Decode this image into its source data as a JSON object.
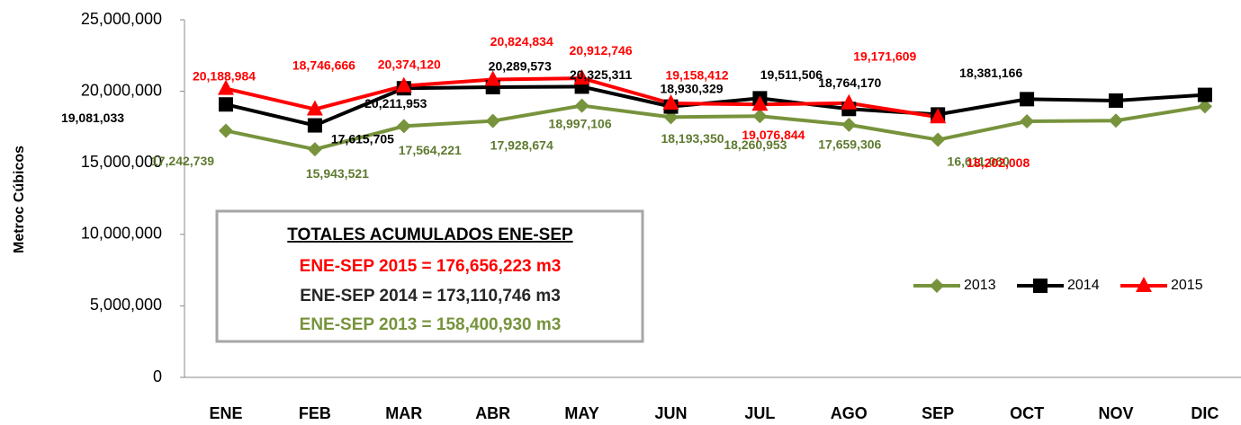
{
  "chart_data": {
    "type": "line",
    "ylabel": "Metroc Cúbicos",
    "categories": [
      "ENE",
      "FEB",
      "MAR",
      "ABR",
      "MAY",
      "JUN",
      "JUL",
      "AGO",
      "SEP",
      "OCT",
      "NOV",
      "DIC"
    ],
    "series": [
      {
        "name": "2013",
        "color": "#77933c",
        "marker": "diamond",
        "values": [
          17242739,
          15943521,
          17564221,
          17928674,
          18997106,
          18193350,
          18260953,
          17659306,
          16611060,
          17900000,
          17950000,
          18950000
        ],
        "value_labels": [
          "17,242,739",
          "15,943,521",
          "17,564,221",
          "17,928,674",
          "18,997,106",
          "18,193,350",
          "18,260,953",
          "17,659,306",
          "16,611,060",
          null,
          null,
          null
        ]
      },
      {
        "name": "2014",
        "color": "#000000",
        "marker": "square",
        "values": [
          19081033,
          17615705,
          20211953,
          20289573,
          20325311,
          18930329,
          19511506,
          18764170,
          18381166,
          19450000,
          19350000,
          19750000
        ],
        "value_labels": [
          "19,081,033",
          "17,615,705",
          "20,211,953",
          "20,289,573",
          "20,325,311",
          "18,930,329",
          "19,511,506",
          "18,764,170",
          "18,381,166",
          null,
          null,
          null
        ]
      },
      {
        "name": "2015",
        "color": "#ff0000",
        "marker": "triangle",
        "values": [
          20188984,
          18746666,
          20374120,
          20824834,
          20912746,
          19158412,
          19076844,
          19171609,
          18202008,
          null,
          null,
          null
        ],
        "value_labels": [
          "20,188,984",
          "18,746,666",
          "20,374,120",
          "20,824,834",
          "20,912,746",
          "19,158,412",
          "19,076,844",
          "19,171,609",
          "18,202,008",
          null,
          null,
          null
        ]
      }
    ],
    "ylim": [
      0,
      25000000
    ],
    "yticks": [
      0,
      {
        "value": 5000000,
        "label": "5,000,000"
      },
      {
        "value": 10000000,
        "label": "10,000,000"
      },
      {
        "value": 15000000,
        "label": "15,000,000"
      },
      {
        "value": 20000000,
        "label": "20,000,000"
      },
      {
        "value": 25000000,
        "label": "25,000,000"
      }
    ],
    "grid": false,
    "legend": "right",
    "annotation": {
      "title": "TOTALES ACUMULADOS ENE-SEP",
      "lines": [
        {
          "text": "ENE-SEP 2015 = 176,656,223 m3",
          "color": "#ff0000"
        },
        {
          "text": "ENE-SEP  2014 = 173,110,746 m3",
          "color": "#262626"
        },
        {
          "text": "ENE-SEP  2013 = 158,400,930 m3",
          "color": "#77933c"
        }
      ]
    }
  }
}
